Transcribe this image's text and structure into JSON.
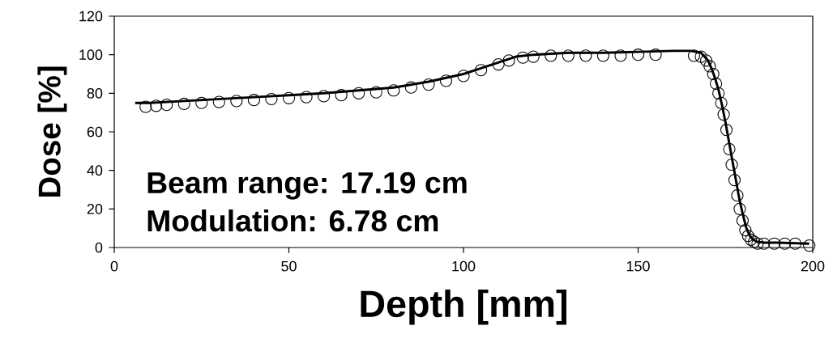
{
  "chart_data": {
    "type": "line",
    "xlabel": "Depth [mm]",
    "ylabel": "Dose [%]",
    "xlim": [
      0,
      200
    ],
    "ylim": [
      0,
      120
    ],
    "xticks": [
      0,
      50,
      100,
      150,
      200
    ],
    "yticks": [
      0,
      20,
      40,
      60,
      80,
      100,
      120
    ],
    "annotations": [
      "Beam range: 17.19 cm",
      "Modulation: 6.78 cm"
    ],
    "series": [
      {
        "type": "line",
        "color": "#000000",
        "line_style": "solid",
        "x": [
          6,
          10,
          20,
          30,
          40,
          50,
          60,
          70,
          80,
          90,
          100,
          105,
          110,
          115,
          120,
          130,
          140,
          150,
          160,
          165,
          168,
          170,
          171,
          172,
          173,
          174,
          175,
          176,
          177,
          178,
          179,
          180,
          181,
          182,
          183,
          184,
          186,
          190,
          199
        ],
        "values": [
          75,
          75,
          76,
          77,
          78,
          79,
          80,
          81.5,
          83,
          86,
          90,
          93,
          96,
          99,
          100,
          101,
          101,
          101.5,
          102,
          102,
          101,
          97,
          93,
          88,
          82,
          74,
          65,
          55,
          45,
          35,
          25,
          17,
          10,
          6,
          4,
          3,
          2.5,
          2.5,
          2
        ]
      },
      {
        "type": "scatter",
        "marker": "circle",
        "color": "#000000",
        "x": [
          9,
          12,
          15,
          20,
          25,
          30,
          35,
          40,
          45,
          50,
          55,
          60,
          65,
          70,
          75,
          80,
          85,
          90,
          95,
          100,
          105,
          110,
          113,
          117,
          120,
          125,
          130,
          135,
          140,
          145,
          150,
          155,
          166,
          168,
          169.5,
          170.5,
          171.5,
          172.3,
          173,
          173.8,
          174.5,
          175.3,
          176.1,
          176.8,
          177.6,
          178.4,
          179.1,
          179.9,
          180.7,
          181.5,
          182.3,
          183.2,
          184.2,
          186,
          189,
          192,
          195,
          199
        ],
        "values": [
          73,
          73.5,
          74,
          74.5,
          75,
          75.5,
          76,
          76.5,
          77,
          77.5,
          78,
          78.5,
          79,
          80,
          80.5,
          81.5,
          83,
          84.5,
          86.5,
          89,
          92,
          95,
          97,
          98.5,
          99,
          99.5,
          99.5,
          99.5,
          99.5,
          99.5,
          100,
          100,
          99.5,
          99,
          97,
          94,
          90,
          85,
          80,
          75,
          69,
          61,
          51,
          43,
          35,
          27,
          20,
          14,
          9,
          6,
          4,
          3,
          2,
          2,
          2,
          2,
          2,
          1
        ]
      }
    ]
  }
}
